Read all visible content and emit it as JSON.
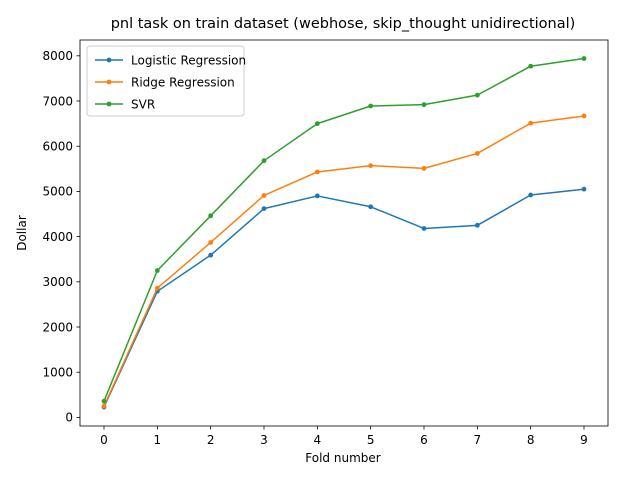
{
  "chart_data": {
    "type": "line",
    "title": "pnl task on train dataset (webhose, skip_thought unidirectional)",
    "xlabel": "Fold number",
    "ylabel": "Dollar",
    "x": [
      0,
      1,
      2,
      3,
      4,
      5,
      6,
      7,
      8,
      9
    ],
    "xticks": [
      "0",
      "1",
      "2",
      "3",
      "4",
      "5",
      "6",
      "7",
      "8",
      "9"
    ],
    "yticks": [
      0,
      1000,
      2000,
      3000,
      4000,
      5000,
      6000,
      7000,
      8000
    ],
    "ytick_labels": [
      "0",
      "1000",
      "2000",
      "3000",
      "4000",
      "5000",
      "6000",
      "7000",
      "8000"
    ],
    "xlim": [
      -0.45,
      9.45
    ],
    "ylim": [
      -190,
      8350
    ],
    "grid": false,
    "legend_position": "top-left",
    "series": [
      {
        "name": "Logistic Regression",
        "color": "#1f77b4",
        "marker": "point",
        "values": [
          230,
          2790,
          3590,
          4620,
          4900,
          4660,
          4180,
          4250,
          4920,
          5050
        ]
      },
      {
        "name": "Ridge Regression",
        "color": "#ff7f0e",
        "marker": "point",
        "values": [
          250,
          2860,
          3870,
          4910,
          5430,
          5570,
          5510,
          5840,
          6510,
          6670
        ]
      },
      {
        "name": "SVR",
        "color": "#2ca02c",
        "marker": "point",
        "values": [
          360,
          3250,
          4460,
          5680,
          6500,
          6890,
          6920,
          7130,
          7770,
          7940
        ]
      }
    ]
  }
}
